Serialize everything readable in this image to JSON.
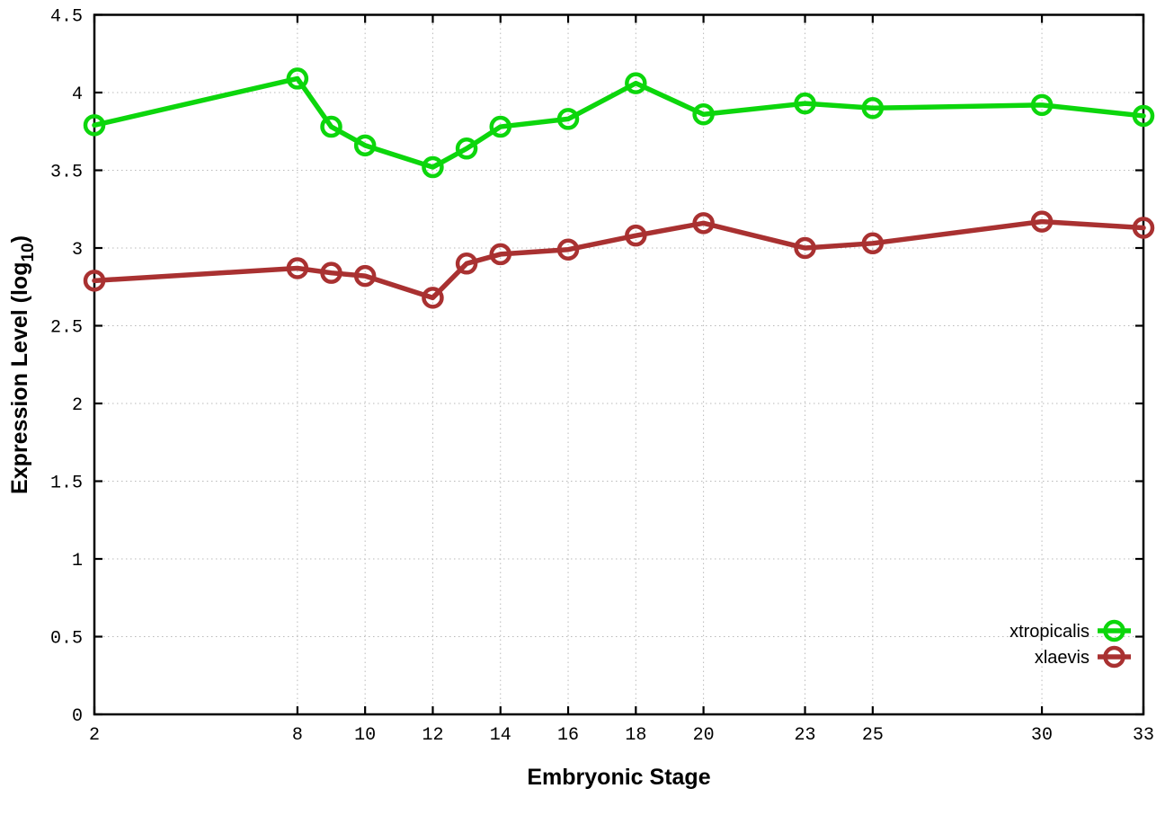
{
  "chart_data": {
    "type": "line",
    "title": "",
    "xlabel": "Embryonic Stage",
    "ylabel": "Expression Level (log10)",
    "ylabel_parts": {
      "main": "Expression Level (log",
      "sub": "10",
      "close": ")"
    },
    "xlim": [
      2,
      33
    ],
    "ylim": [
      0,
      4.5
    ],
    "grid": true,
    "legend_position": "bottom-right",
    "x_ticks": [
      2,
      8,
      10,
      12,
      14,
      16,
      18,
      20,
      23,
      25,
      30,
      33
    ],
    "x_tick_labels": [
      "2",
      "8",
      "10",
      "12",
      "14",
      "16",
      "18",
      "20",
      "23",
      "25",
      "30",
      "33"
    ],
    "y_ticks": [
      0,
      0.5,
      1,
      1.5,
      2,
      2.5,
      3,
      3.5,
      4,
      4.5
    ],
    "y_tick_labels": [
      "0",
      "0.5",
      "1",
      "1.5",
      "2",
      "2.5",
      "3",
      "3.5",
      "4",
      "4.5"
    ],
    "x": [
      2,
      8,
      9,
      10,
      12,
      13,
      14,
      16,
      18,
      20,
      23,
      25,
      30,
      33
    ],
    "series": [
      {
        "name": "xtropicalis",
        "color": "#0cd60c",
        "values": [
          3.79,
          4.09,
          3.78,
          3.66,
          3.52,
          3.64,
          3.78,
          3.83,
          4.06,
          3.86,
          3.93,
          3.9,
          3.92,
          3.85
        ]
      },
      {
        "name": "xlaevis",
        "color": "#a93131",
        "values": [
          2.79,
          2.87,
          2.84,
          2.82,
          2.68,
          2.9,
          2.96,
          2.99,
          3.08,
          3.16,
          3.0,
          3.03,
          3.17,
          3.13
        ]
      }
    ]
  },
  "style": {
    "grid_color": "#b9b9b9",
    "border_color": "#000000",
    "background": "#ffffff"
  }
}
